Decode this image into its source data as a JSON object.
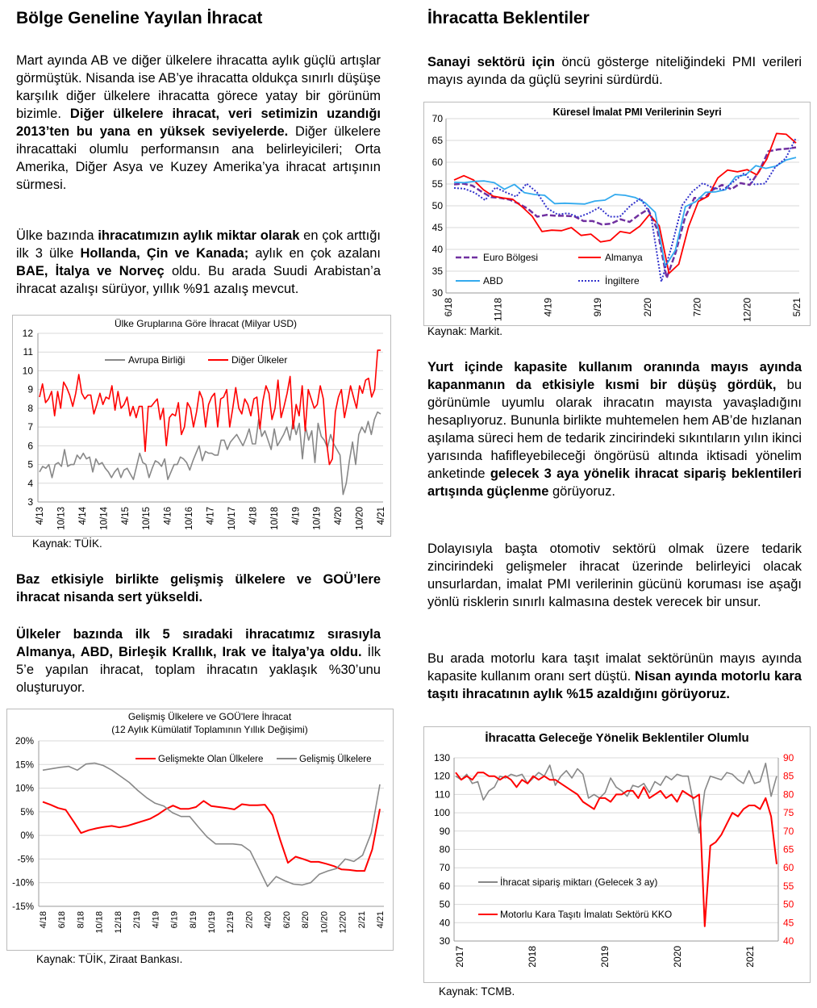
{
  "left": {
    "heading": "Bölge Geneline Yayılan İhracat",
    "p1": [
      {
        "t": "Mart ayında AB ve diğer ülkelere ihracatta aylık güçlü artışlar görmüştük. Nisanda ise AB’ye ihracatta oldukça sınırlı düşüşe karşılık diğer ülkelere ihracatta görece yatay bir görünüm bizimle. ",
        "b": false
      },
      {
        "t": "Diğer ülkelere ihracat, veri setimizin uzandığı 2013’ten bu yana en yüksek seviyelerde.",
        "b": true
      },
      {
        "t": " Diğer ülkelere ihracattaki olumlu performansın ana belirleyicileri; Orta Amerika, Diğer Asya ve Kuzey Amerika’ya ihracat artışının sürmesi.",
        "b": false
      }
    ],
    "p2": [
      {
        "t": "Ülke bazında ",
        "b": false
      },
      {
        "t": "ihracatımızın aylık miktar olarak",
        "b": true
      },
      {
        "t": " en çok arttığı ilk 3 ülke ",
        "b": false
      },
      {
        "t": "Hollanda, Çin ve Kanada;",
        "b": true
      },
      {
        "t": " aylık en çok azalanı ",
        "b": false
      },
      {
        "t": "BAE, İtalya ve Norveç",
        "b": true
      },
      {
        "t": " oldu. Bu arada Suudi Arabistan’a ihracat azalışı sürüyor, yıllık %91 azalış mevcut.",
        "b": false
      }
    ],
    "p3": [
      {
        "t": "Baz etkisiyle birlikte gelişmiş ülkelere ve GOÜ’lere ihracat nisanda sert yükseldi.",
        "b": true
      }
    ],
    "p4": [
      {
        "t": "Ülkeler bazında ilk 5 sıradaki ihracatımız sırasıyla Almanya, ABD, Birleşik Krallık, Irak ve İtalya’ya oldu.",
        "b": true
      },
      {
        "t": " İlk 5’e yapılan ihracat, toplam ihracatın yaklaşık %30’unu oluşturuyor.",
        "b": false
      }
    ],
    "source1": "Kaynak: TÜİK.",
    "source2": "Kaynak: TÜİK, Ziraat Bankası."
  },
  "right": {
    "heading": "İhracatta Beklentiler",
    "p1": [
      {
        "t": "Sanayi sektörü için",
        "b": true
      },
      {
        "t": " öncü gösterge niteliğindeki PMI verileri mayıs ayında da güçlü seyrini sürdürdü.",
        "b": false
      }
    ],
    "p2": [
      {
        "t": "Yurt içinde kapasite kullanım oranında mayıs ayında kapanmanın da etkisiyle kısmi bir düşüş gördük,",
        "b": true
      },
      {
        "t": " bu görünümle uyumlu olarak ihracatın mayısta yavaşladığını hesaplıyoruz. Bununla birlikte muhtemelen hem AB’de hızlanan aşılama süreci hem de tedarik zincirindeki sıkıntıların yılın ikinci yarısında hafifleyebileceği öngörüsü altında iktisadi yönelim anketinde ",
        "b": false
      },
      {
        "t": "gelecek 3 aya yönelik ihracat sipariş beklentileri artışında güçlenme",
        "b": true
      },
      {
        "t": " görüyoruz.",
        "b": false
      }
    ],
    "p3": [
      {
        "t": "Dolayısıyla başta otomotiv sektörü olmak üzere tedarik zincirindeki gelişmeler ihracat üzerinde belirleyici olacak unsurlardan, imalat PMI verilerinin gücünü koruması ise aşağı yönlü risklerin sınırlı kalmasına destek verecek bir unsur.",
        "b": false
      }
    ],
    "p4": [
      {
        "t": "Bu arada motorlu kara taşıt imalat sektörünün mayıs ayında kapasite kullanım oranı sert düştü. ",
        "b": false
      },
      {
        "t": "Nisan ayında motorlu kara taşıtı ihracatının aylık %15 azaldığını görüyoruz.",
        "b": true
      }
    ],
    "source1": "Kaynak: Markit.",
    "source2": "Kaynak: TCMB."
  },
  "chart_data": [
    {
      "id": "chart1",
      "type": "line",
      "title": "Ülke Gruplarına Göre İhracat (Milyar USD)",
      "xlabel": "",
      "ylabel": "",
      "ylim": [
        3,
        12
      ],
      "yticks": [
        3,
        4,
        5,
        6,
        7,
        8,
        9,
        10,
        11,
        12
      ],
      "xticks": [
        "4/13",
        "10/13",
        "4/14",
        "10/14",
        "4/15",
        "10/15",
        "4/16",
        "10/16",
        "4/17",
        "10/17",
        "4/18",
        "10/18",
        "4/19",
        "10/19",
        "4/20",
        "10/20",
        "4/21"
      ],
      "legend_position": "top-left",
      "colors": [
        "#888888",
        "#ff0000"
      ],
      "series": [
        {
          "name": "Avrupa Birliği",
          "values": [
            4.6,
            4.9,
            4.8,
            5.0,
            4.3,
            5.0,
            5.1,
            4.9,
            5.8,
            4.9,
            5.0,
            5.0,
            5.5,
            5.3,
            5.6,
            5.3,
            5.4,
            4.6,
            5.3,
            5.0,
            5.1,
            4.8,
            4.6,
            4.3,
            4.6,
            4.8,
            4.3,
            4.7,
            4.8,
            4.5,
            4.2,
            4.9,
            5.6,
            5.1,
            5.0,
            4.3,
            4.8,
            5.2,
            5.1,
            4.9,
            5.3,
            4.2,
            4.6,
            5.0,
            5.0,
            5.4,
            5.3,
            5.1,
            4.7,
            5.2,
            5.6,
            6.0,
            5.2,
            5.7,
            5.6,
            5.6,
            5.5,
            5.5,
            6.3,
            6.3,
            5.8,
            6.2,
            6.4,
            6.6,
            6.3,
            6.0,
            6.4,
            6.9,
            6.1,
            6.1,
            7.4,
            6.5,
            6.8,
            6.3,
            5.8,
            6.9,
            6.0,
            6.3,
            6.6,
            7.0,
            6.3,
            7.3,
            6.6,
            7.2,
            5.3,
            7.0,
            6.3,
            6.8,
            5.1,
            7.2,
            6.5,
            6.3,
            5.9,
            6.6,
            6.1,
            5.8,
            5.5,
            3.4,
            4.0,
            5.2,
            6.2,
            5.0,
            6.6,
            7.0,
            6.7,
            7.3,
            6.6,
            7.4,
            7.8,
            7.7
          ]
        },
        {
          "name": "Diğer Ülkeler",
          "values": [
            8.6,
            9.3,
            8.3,
            8.5,
            8.9,
            7.6,
            8.9,
            8.0,
            9.4,
            9.1,
            8.7,
            8.1,
            8.8,
            9.8,
            8.8,
            8.5,
            8.7,
            8.7,
            7.7,
            8.2,
            8.8,
            8.2,
            8.6,
            8.5,
            9.2,
            7.9,
            8.9,
            8.0,
            8.2,
            8.6,
            7.6,
            8.1,
            7.5,
            8.1,
            8.1,
            5.7,
            8.1,
            8.1,
            8.3,
            8.5,
            7.4,
            8.0,
            6.0,
            7.5,
            7.7,
            7.6,
            8.3,
            6.6,
            7.0,
            8.3,
            8.0,
            7.0,
            7.8,
            8.9,
            8.5,
            7.0,
            8.2,
            8.6,
            8.8,
            7.0,
            8.5,
            8.6,
            9.0,
            7.0,
            8.0,
            9.1,
            8.0,
            7.7,
            8.5,
            8.2,
            7.6,
            8.5,
            8.6,
            6.9,
            8.4,
            9.2,
            8.8,
            7.4,
            8.0,
            9.5,
            7.5,
            8.1,
            8.8,
            9.7,
            6.9,
            8.2,
            7.6,
            9.2,
            6.8,
            9.0,
            8.5,
            8.0,
            8.2,
            9.2,
            8.5,
            6.3,
            5.0,
            5.3,
            7.8,
            8.6,
            9.0,
            7.5,
            8.3,
            9.2,
            8.6,
            8.0,
            9.2,
            8.8,
            9.5,
            9.6,
            8.6,
            9.0,
            11.1,
            11.1
          ]
        }
      ]
    },
    {
      "id": "chart2",
      "type": "line",
      "title": "Gelişmiş Ülkelere ve GOÜ'lere İhracat",
      "subtitle": "(12 Aylık Kümülatif Toplamının Yıllık Değişimi)",
      "ylim": [
        -15,
        20
      ],
      "yticks": [
        "20%",
        "15%",
        "10%",
        "5%",
        "0%",
        "-5%",
        "-10%",
        "-15%"
      ],
      "xticks": [
        "4/18",
        "6/18",
        "8/18",
        "10/18",
        "12/18",
        "2/19",
        "4/19",
        "6/19",
        "8/19",
        "10/19",
        "12/19",
        "2/20",
        "4/20",
        "6/20",
        "8/20",
        "10/20",
        "12/20",
        "2/21",
        "4/21"
      ],
      "legend_position": "top-right",
      "colors": [
        "#ff0000",
        "#888888"
      ],
      "series": [
        {
          "name": "Gelişmekte Olan Ülkelere",
          "values": [
            7.1,
            6.5,
            5.8,
            5.4,
            3.0,
            0.5,
            1.1,
            1.5,
            1.8,
            2.0,
            1.7,
            2.0,
            2.5,
            3.0,
            3.5,
            4.4,
            5.5,
            6.3,
            5.6,
            5.6,
            6.0,
            7.3,
            6.2,
            6.0,
            5.8,
            5.5,
            6.6,
            6.4,
            6.4,
            6.5,
            4.3,
            -1.0,
            -5.8,
            -4.5,
            -5.0,
            -5.6,
            -5.6,
            -6.0,
            -6.5,
            -7.2,
            -7.3,
            -7.5,
            -7.5,
            -3.0,
            5.6
          ]
        },
        {
          "name": "Gelişmiş Ülkelere",
          "values": [
            13.8,
            14.1,
            14.4,
            14.6,
            13.8,
            15.1,
            15.3,
            14.8,
            13.8,
            12.5,
            11.2,
            9.5,
            8.0,
            6.8,
            6.2,
            4.8,
            4.0,
            4.0,
            1.8,
            -0.3,
            -1.8,
            -1.8,
            -1.8,
            -2.0,
            -3.3,
            -7.0,
            -10.8,
            -8.7,
            -9.6,
            -10.3,
            -10.5,
            -10.0,
            -8.2,
            -7.5,
            -7.0,
            -5.0,
            -5.5,
            -4.2,
            0.5,
            10.8
          ]
        }
      ]
    },
    {
      "id": "chart3",
      "type": "line",
      "title": "Küresel İmalat PMI Verilerinin Seyri",
      "ylim": [
        30,
        70
      ],
      "yticks": [
        30,
        35,
        40,
        45,
        50,
        55,
        60,
        65,
        70
      ],
      "xticks": [
        "6/18",
        "11/18",
        "4/19",
        "9/19",
        "2/20",
        "7/20",
        "12/20",
        "5/21"
      ],
      "legend_position": "bottom-left",
      "colors": [
        "#7030a0",
        "#ff0000",
        "#33aaee",
        "#3333cc"
      ],
      "series": [
        {
          "name": "Euro Bölgesi",
          "values": [
            54.9,
            55.1,
            54.6,
            53.2,
            52.0,
            51.8,
            51.4,
            50.5,
            49.3,
            47.5,
            47.9,
            47.7,
            47.7,
            47.6,
            46.5,
            46.5,
            45.7,
            45.9,
            46.9,
            46.3,
            47.9,
            49.2,
            44.5,
            33.4,
            39.4,
            47.4,
            51.8,
            51.7,
            53.7,
            54.8,
            53.8,
            55.2,
            54.8,
            57.9,
            62.5,
            62.9,
            63.1,
            63.4
          ]
        },
        {
          "name": "Almanya",
          "values": [
            55.9,
            56.9,
            55.9,
            53.7,
            52.2,
            51.8,
            51.5,
            49.7,
            47.6,
            44.1,
            44.4,
            44.3,
            45.0,
            43.2,
            43.5,
            41.7,
            42.1,
            44.1,
            43.7,
            45.3,
            48.0,
            45.4,
            34.5,
            36.6,
            45.2,
            51.0,
            52.2,
            56.4,
            58.2,
            57.8,
            58.3,
            57.1,
            60.7,
            66.6,
            66.4,
            64.4
          ]
        },
        {
          "name": "ABD",
          "values": [
            55.4,
            55.3,
            55.6,
            55.7,
            55.3,
            53.8,
            54.9,
            53.0,
            52.6,
            52.4,
            50.5,
            50.6,
            50.5,
            50.4,
            51.1,
            51.3,
            52.6,
            52.4,
            51.9,
            50.7,
            48.5,
            36.1,
            39.8,
            49.8,
            50.9,
            53.1,
            53.2,
            53.7,
            56.7,
            57.1,
            59.2,
            58.6,
            59.1,
            60.5,
            61.1
          ]
        },
        {
          "name": "İngiltere",
          "values": [
            54.1,
            53.9,
            53.0,
            51.3,
            54.2,
            53.1,
            52.1,
            55.1,
            53.1,
            49.4,
            48.0,
            48.3,
            47.4,
            48.3,
            49.6,
            47.5,
            47.5,
            50.0,
            51.7,
            47.8,
            32.6,
            40.7,
            50.1,
            53.3,
            55.2,
            54.1,
            53.7,
            55.6,
            57.5,
            54.9,
            55.1,
            58.9,
            60.9,
            65.6
          ]
        }
      ]
    },
    {
      "id": "chart4",
      "type": "line",
      "title": "İhracatta Geleceğe Yönelik Beklentiler Olumlu",
      "ylim": [
        30,
        130
      ],
      "yticks": [
        30,
        40,
        50,
        60,
        70,
        80,
        90,
        100,
        110,
        120,
        130
      ],
      "y2lim": [
        40,
        90
      ],
      "y2ticks": [
        40,
        45,
        50,
        55,
        60,
        65,
        70,
        75,
        80,
        85,
        90
      ],
      "xticks": [
        "2017",
        "2018",
        "2019",
        "2020",
        "2021"
      ],
      "legend_position": "bottom-left",
      "colors": [
        "#888888",
        "#ff0000"
      ],
      "series": [
        {
          "name": "İhracat sipariş miktarı (Gelecek 3 ay)",
          "axis": "left",
          "values": [
            120,
            118,
            121,
            116,
            117,
            107,
            112,
            114,
            120,
            119,
            121,
            120,
            121,
            116,
            119,
            122,
            120,
            126,
            115,
            120,
            123,
            119,
            124,
            121,
            108,
            110,
            108,
            111,
            119,
            114,
            112,
            109,
            115,
            114,
            116,
            111,
            117,
            115,
            120,
            118,
            121,
            120,
            120,
            105,
            89,
            112,
            120,
            119,
            118,
            122,
            121,
            118,
            116,
            123,
            116,
            117,
            127,
            109,
            120
          ]
        },
        {
          "name": "Motorlu Kara Taşıtı İmalatı Sektörü KKO",
          "axis": "right",
          "values": [
            86,
            84,
            85,
            84,
            86,
            86,
            85,
            85,
            84,
            85,
            84,
            82,
            84,
            83,
            85,
            84,
            85,
            84,
            84,
            83,
            82,
            81,
            80,
            78,
            77,
            76,
            79,
            79,
            78,
            80,
            80,
            81,
            81,
            79,
            82,
            79,
            80,
            81,
            79,
            80,
            78,
            81,
            80,
            79,
            80,
            44,
            66,
            67,
            69,
            72,
            75,
            74,
            76,
            77,
            77,
            76,
            79,
            74,
            61
          ]
        }
      ]
    }
  ]
}
